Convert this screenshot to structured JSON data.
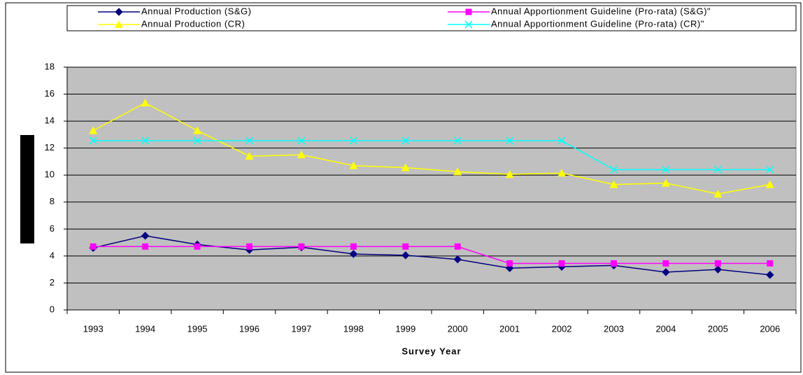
{
  "chart_data": {
    "type": "line",
    "x_label": "Survey Year",
    "categories": [
      "1993",
      "1994",
      "1995",
      "1996",
      "1997",
      "1998",
      "1999",
      "2000",
      "2001",
      "2002",
      "2003",
      "2004",
      "2005",
      "2006"
    ],
    "series": [
      {
        "name": "Annual Production (S&G)",
        "color": "#000080",
        "marker": "diamond",
        "values": [
          4.6,
          5.5,
          4.85,
          4.45,
          4.65,
          4.15,
          4.05,
          3.75,
          3.1,
          3.2,
          3.3,
          2.8,
          3.0,
          2.6
        ]
      },
      {
        "name": "Annual Apportionment Guideline (Pro-rata) (S&G)\"",
        "color": "#ff00ff",
        "marker": "square",
        "values": [
          4.7,
          4.7,
          4.7,
          4.7,
          4.7,
          4.7,
          4.7,
          4.7,
          3.45,
          3.45,
          3.45,
          3.45,
          3.45,
          3.45
        ]
      },
      {
        "name": "Annual Production (CR)",
        "color": "#ffff00",
        "marker": "triangle",
        "values": [
          13.3,
          15.35,
          13.3,
          11.4,
          11.5,
          10.7,
          10.55,
          10.25,
          10.05,
          10.15,
          9.3,
          9.4,
          8.6,
          9.3
        ]
      },
      {
        "name": "Annual Apportionment Guideline (Pro-rata) (CR)\"",
        "color": "#00ffff",
        "marker": "x",
        "values": [
          12.55,
          12.55,
          12.55,
          12.55,
          12.55,
          12.55,
          12.55,
          12.55,
          12.55,
          12.55,
          10.4,
          10.4,
          10.4,
          10.4
        ]
      }
    ],
    "ylim": [
      0,
      18
    ],
    "yticks": [
      0,
      2,
      4,
      6,
      8,
      10,
      12,
      14,
      16,
      18
    ],
    "grid": true,
    "legend": "top",
    "plot_background": "#c0c0c0"
  }
}
